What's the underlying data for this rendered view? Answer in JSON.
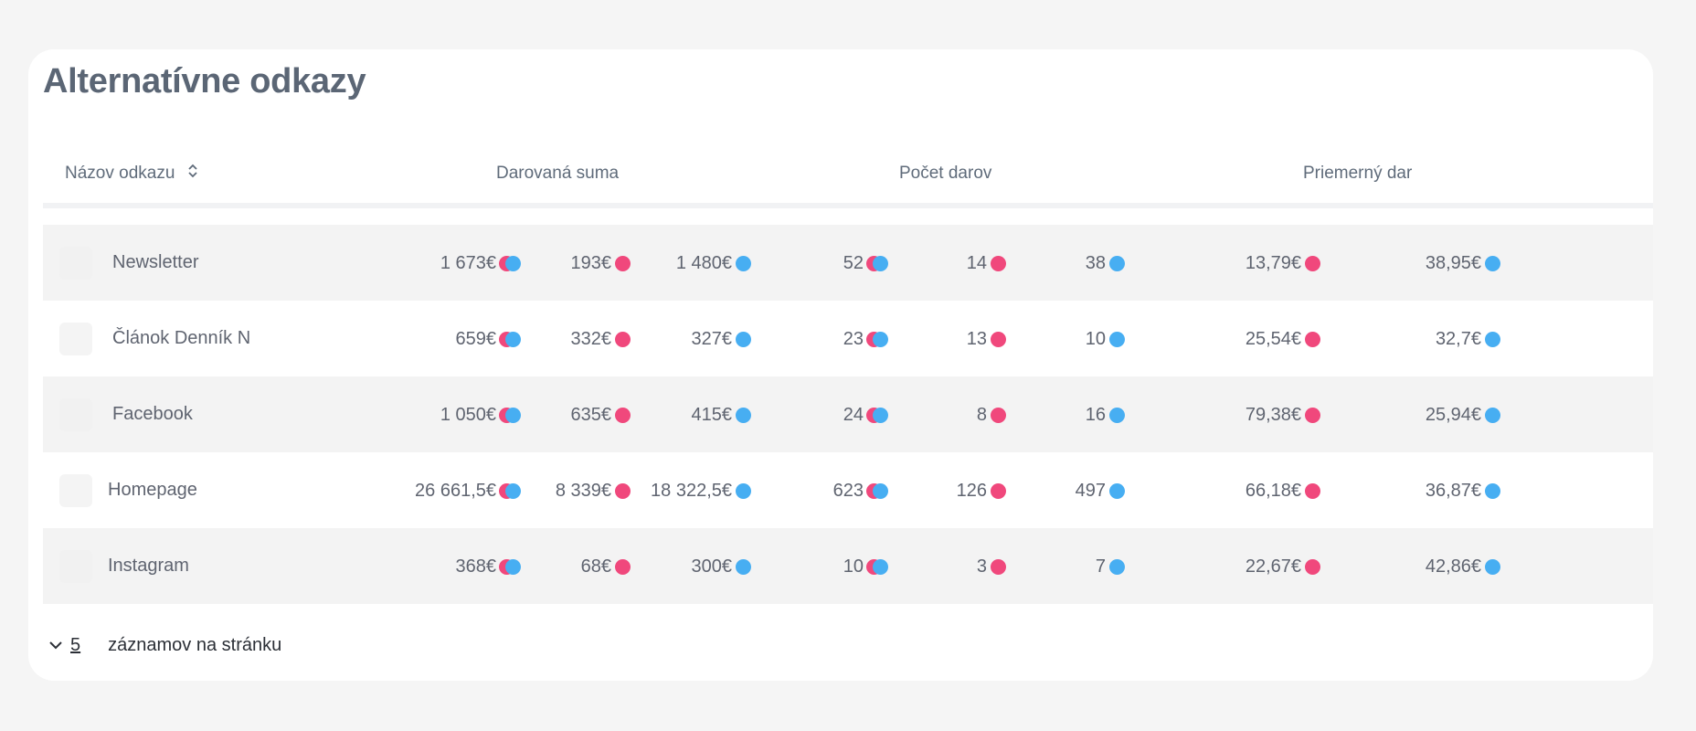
{
  "title": "Alternatívne odkazy",
  "colors": {
    "pink": "#f0487c",
    "blue": "#47aef2"
  },
  "headers": {
    "name": "Názov odkazu",
    "sum": "Darovaná suma",
    "count": "Počet darov",
    "avg": "Priemerný dar",
    "sort_icon": "sort-icon"
  },
  "rows": [
    {
      "name": "Newsletter",
      "sum_total": "1 673€",
      "sum_pink": "193€",
      "sum_blue": "1 480€",
      "cnt_total": "52",
      "cnt_pink": "14",
      "cnt_blue": "38",
      "avg_pink": "13,79€",
      "avg_blue": "38,95€"
    },
    {
      "name": "Článok Denník N",
      "sum_total": "659€",
      "sum_pink": "332€",
      "sum_blue": "327€",
      "cnt_total": "23",
      "cnt_pink": "13",
      "cnt_blue": "10",
      "avg_pink": "25,54€",
      "avg_blue": "32,7€"
    },
    {
      "name": "Facebook",
      "sum_total": "1 050€",
      "sum_pink": "635€",
      "sum_blue": "415€",
      "cnt_total": "24",
      "cnt_pink": "8",
      "cnt_blue": "16",
      "avg_pink": "79,38€",
      "avg_blue": "25,94€"
    },
    {
      "name": "Homepage",
      "sum_total": "26 661,5€",
      "sum_pink": "8 339€",
      "sum_blue": "18 322,5€",
      "cnt_total": "623",
      "cnt_pink": "126",
      "cnt_blue": "497",
      "avg_pink": "66,18€",
      "avg_blue": "36,87€"
    },
    {
      "name": "Instagram",
      "sum_total": "368€",
      "sum_pink": "68€",
      "sum_blue": "300€",
      "cnt_total": "10",
      "cnt_pink": "3",
      "cnt_blue": "7",
      "avg_pink": "22,67€",
      "avg_blue": "42,86€"
    }
  ],
  "footer": {
    "per_page": "5",
    "label": "záznamov na stránku",
    "chevron_icon": "chevron-down-icon"
  }
}
